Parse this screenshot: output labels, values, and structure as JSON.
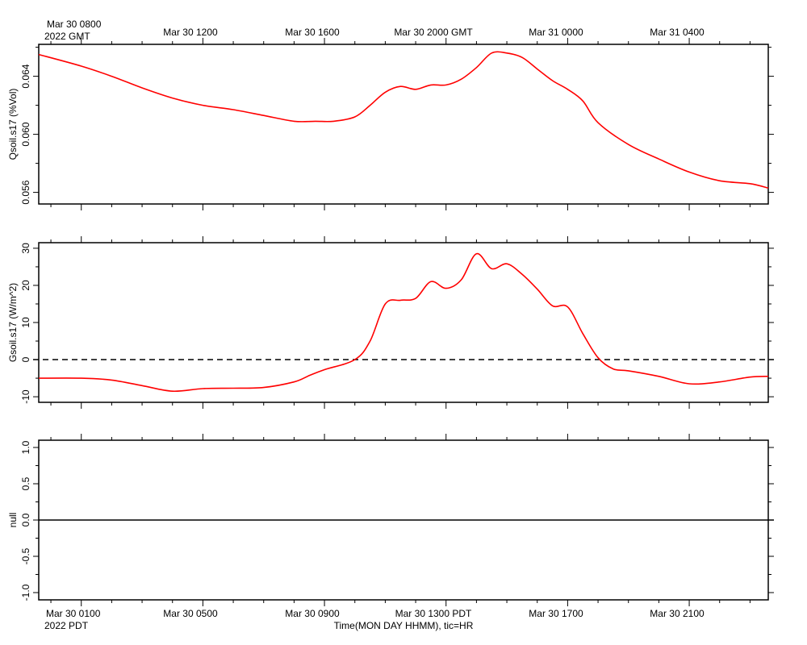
{
  "top_axis": {
    "first_label_line1": "Mar 30 0800",
    "first_label_line2": "2022 GMT",
    "labels": [
      "Mar 30 1200",
      "Mar 30 1600",
      "Mar 30 2000 GMT",
      "Mar 31 0000",
      "Mar 31 0400"
    ]
  },
  "bottom_axis": {
    "first_label_line1": "Mar 30 0100",
    "first_label_line2": "2022 PDT",
    "labels": [
      "Mar 30 0500",
      "Mar 30 0900",
      "Mar 30 1300 PDT",
      "Mar 30 1700",
      "Mar 30 2100"
    ],
    "xlabel": "Time(MON DAY HHMM), tic=HR"
  },
  "colors": {
    "series": "#ff0000",
    "axis": "#000000",
    "zero_line": "#000000"
  },
  "chart_data": [
    {
      "type": "line",
      "ylabel": "Qsoil.s17 (%Vol)",
      "yticks": [
        "0.056",
        "0.060",
        "0.064"
      ],
      "ylim": [
        0.0552,
        0.0662
      ],
      "x_units": "hours since Mar 30 0800 GMT (Mar 30 0100 PDT)",
      "xlim": [
        -1.4,
        22.6
      ],
      "grid": false,
      "series": [
        {
          "x": [
            -1.4,
            0,
            1,
            2,
            3,
            4,
            5,
            6,
            7,
            7.7,
            8.3,
            9,
            9.5,
            10,
            10.5,
            11,
            11.5,
            12,
            12.5,
            13,
            13.5,
            14,
            14.5,
            15,
            15.5,
            16,
            16.5,
            17,
            18,
            19,
            20,
            21,
            22,
            22.6
          ],
          "y": [
            0.0655,
            0.0647,
            0.064,
            0.0632,
            0.0625,
            0.062,
            0.0617,
            0.0613,
            0.0609,
            0.0609,
            0.0609,
            0.0612,
            0.062,
            0.0629,
            0.0633,
            0.0631,
            0.0634,
            0.0634,
            0.0638,
            0.0646,
            0.0656,
            0.0656,
            0.0653,
            0.0645,
            0.0637,
            0.0631,
            0.0623,
            0.0608,
            0.0593,
            0.0583,
            0.0574,
            0.0568,
            0.0566,
            0.0563
          ]
        }
      ]
    },
    {
      "type": "line",
      "ylabel": "Gsoil.s17 (W/m^2)",
      "yticks": [
        "-10",
        "0",
        "10",
        "20",
        "30"
      ],
      "ylim": [
        -11.5,
        31.5
      ],
      "x_units": "hours since Mar 30 0800 GMT (Mar 30 0100 PDT)",
      "xlim": [
        -1.4,
        22.6
      ],
      "grid": false,
      "reference_line": {
        "y": 0,
        "style": "dashed"
      },
      "series": [
        {
          "x": [
            -1.4,
            0,
            1,
            2,
            3,
            4,
            5,
            6,
            7,
            7.5,
            8,
            9,
            9.5,
            10,
            10.5,
            11,
            11.5,
            12,
            12.5,
            13,
            13.5,
            14,
            14.5,
            15,
            15.5,
            16,
            16.5,
            17,
            17.5,
            18,
            19,
            20,
            21,
            22,
            22.6
          ],
          "y": [
            -5,
            -5,
            -5.5,
            -7,
            -8.5,
            -7.8,
            -7.7,
            -7.5,
            -6,
            -4.3,
            -2.7,
            0,
            5,
            15,
            16,
            16.5,
            21,
            19.2,
            21.5,
            28.5,
            24.5,
            25.8,
            23,
            19,
            14.5,
            14.2,
            7,
            0.5,
            -2.5,
            -3,
            -4.5,
            -6.5,
            -6,
            -4.7,
            -4.5
          ]
        }
      ]
    },
    {
      "type": "line",
      "ylabel": "null",
      "yticks": [
        "-1.0",
        "-0.5",
        "0.0",
        "0.5",
        "1.0"
      ],
      "ylim": [
        -1.1,
        1.1
      ],
      "grid": false,
      "reference_line": {
        "y": 0,
        "style": "solid"
      },
      "series": []
    }
  ]
}
